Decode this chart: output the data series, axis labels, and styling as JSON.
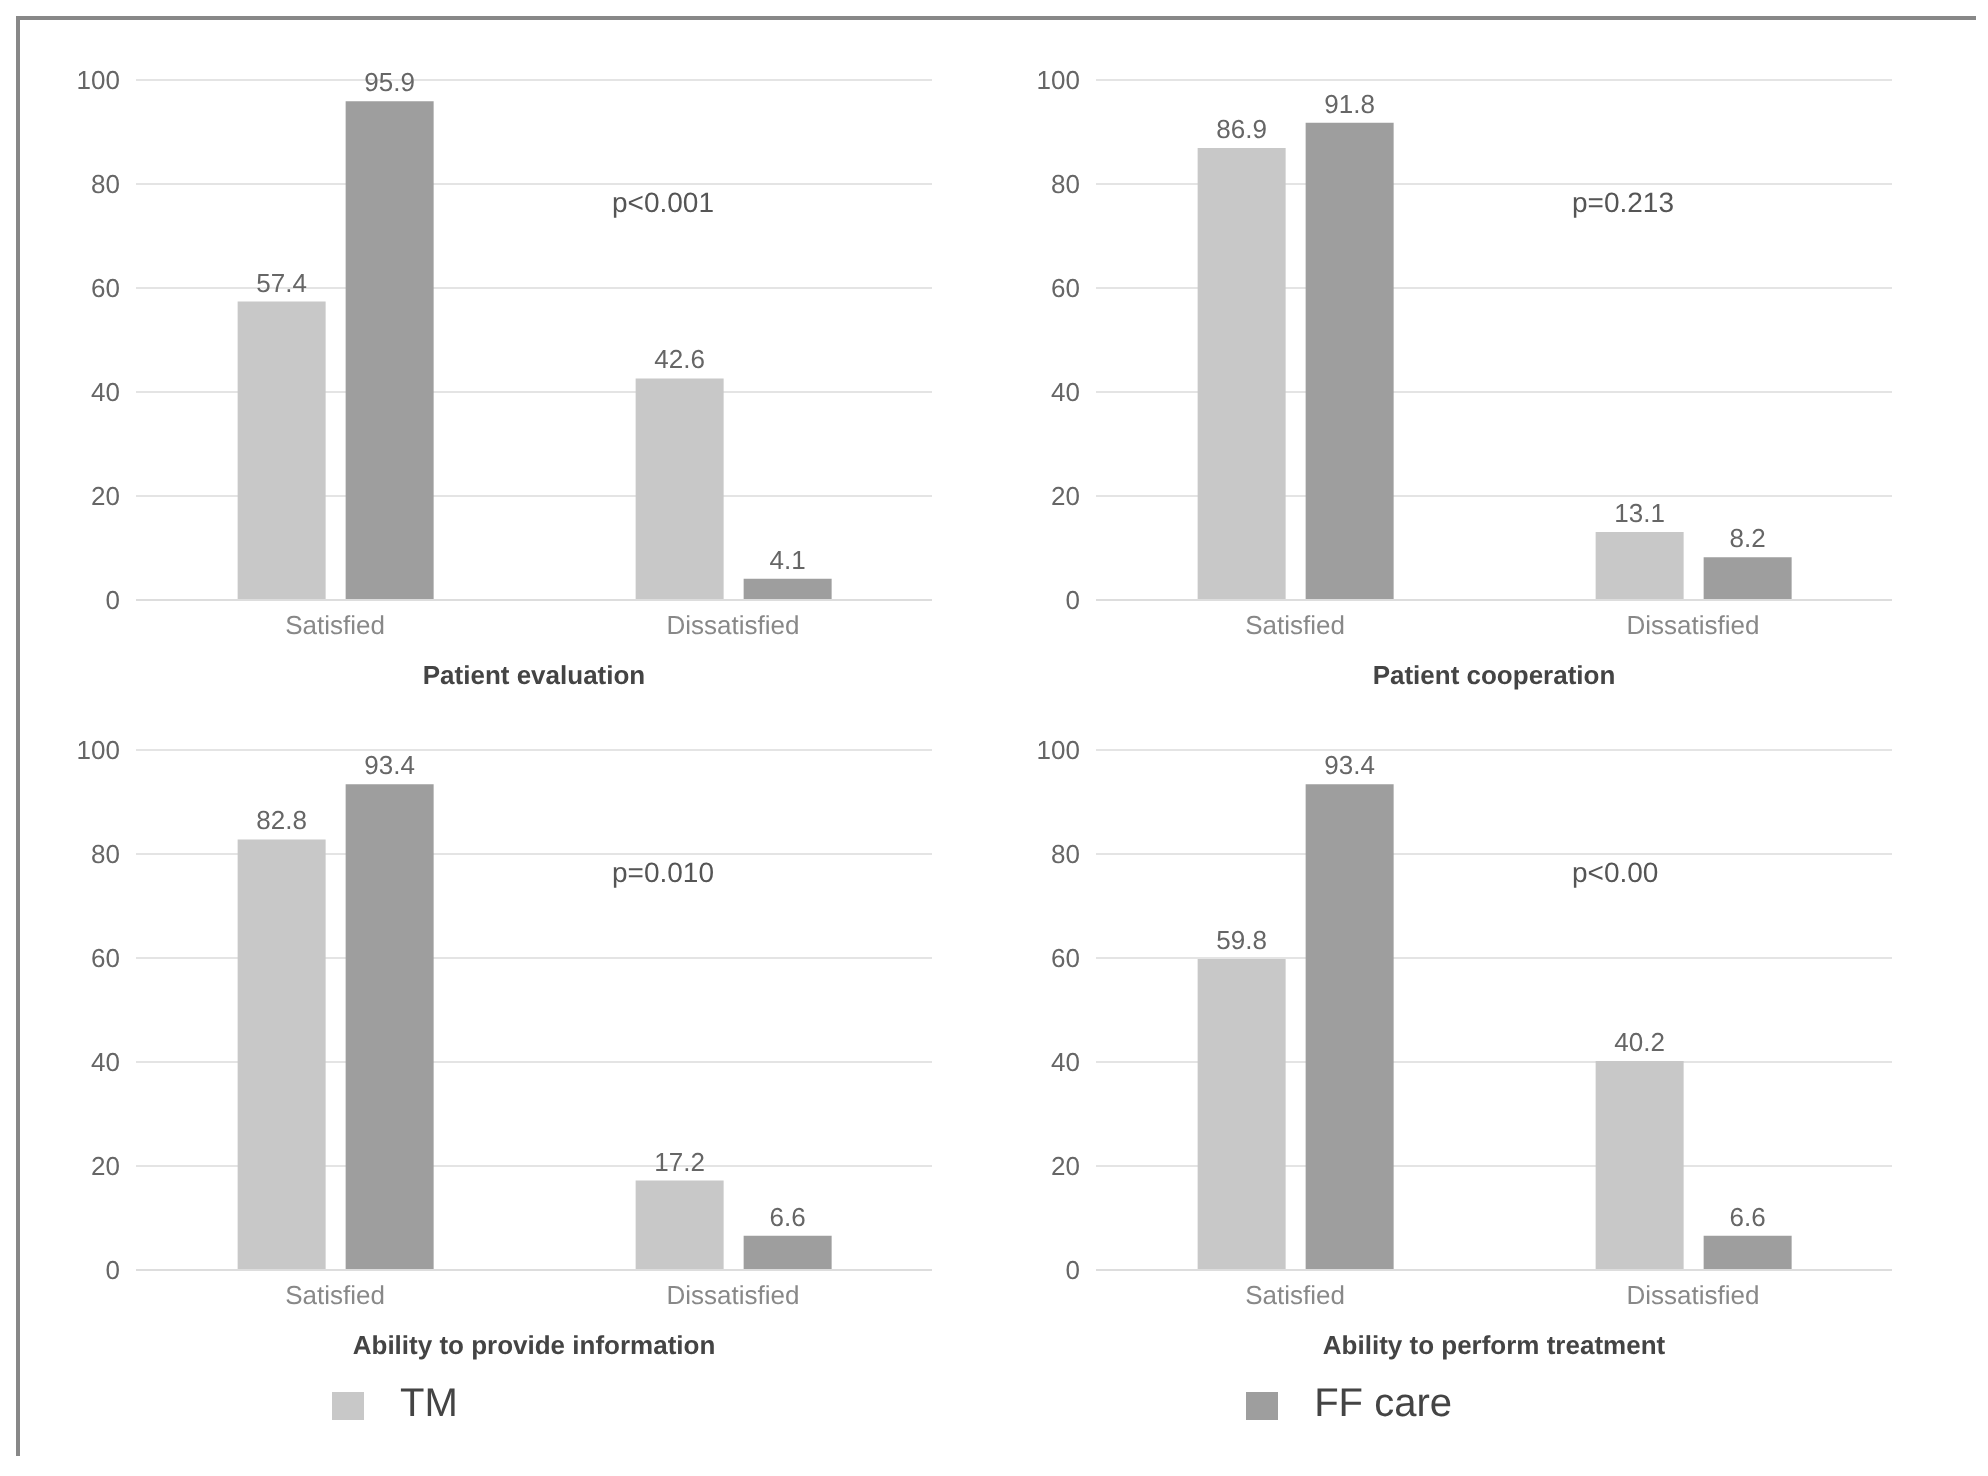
{
  "chart_data": [
    {
      "type": "bar",
      "xlabel": "Patient evaluation",
      "categories": [
        "Satisfied",
        "Dissatisfied"
      ],
      "series": [
        {
          "color": "#c8c8c8",
          "values": [
            57.4,
            42.6
          ]
        },
        {
          "color": "#9e9e9e",
          "values": [
            95.9,
            4.1
          ]
        }
      ],
      "ylim": [
        0,
        100
      ],
      "yticks": [
        0,
        20,
        40,
        60,
        80,
        100
      ],
      "grid": "y",
      "data_labels": true,
      "annotations": [
        "p<0.001"
      ]
    },
    {
      "type": "bar",
      "xlabel": "Patient cooperation",
      "categories": [
        "Satisfied",
        "Dissatisfied"
      ],
      "series": [
        {
          "color": "#c8c8c8",
          "values": [
            86.9,
            13.1
          ]
        },
        {
          "color": "#9e9e9e",
          "values": [
            91.8,
            8.2
          ]
        }
      ],
      "ylim": [
        0,
        100
      ],
      "yticks": [
        0,
        20,
        40,
        60,
        80,
        100
      ],
      "grid": "y",
      "data_labels": true,
      "annotations": [
        "p=0.213"
      ]
    },
    {
      "type": "bar",
      "xlabel": "Ability to provide information",
      "categories": [
        "Satisfied",
        "Dissatisfied"
      ],
      "series": [
        {
          "color": "#c8c8c8",
          "values": [
            82.8,
            17.2
          ]
        },
        {
          "color": "#9e9e9e",
          "values": [
            93.4,
            6.6
          ]
        }
      ],
      "ylim": [
        0,
        100
      ],
      "yticks": [
        0,
        20,
        40,
        60,
        80,
        100
      ],
      "grid": "y",
      "data_labels": true,
      "annotations": [
        "p=0.010"
      ]
    },
    {
      "type": "bar",
      "xlabel": "Ability to perform treatment",
      "categories": [
        "Satisfied",
        "Dissatisfied"
      ],
      "series": [
        {
          "name": "TM",
          "color": "#c8c8c8",
          "values": [
            59.8,
            40.2
          ]
        },
        {
          "name": "FF care",
          "color": "#9e9e9e",
          "values": [
            93.4,
            6.6
          ]
        }
      ],
      "ylim": [
        0,
        100
      ],
      "yticks": [
        0,
        20,
        40,
        60,
        80,
        100
      ],
      "grid": "y",
      "data_labels": true,
      "legend": "bottom",
      "annotations": [
        "p<0.00"
      ]
    }
  ]
}
